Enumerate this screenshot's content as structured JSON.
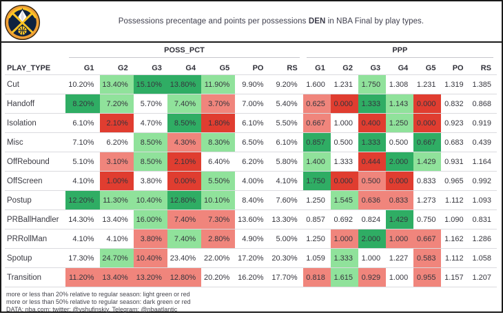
{
  "header": {
    "title_prefix": "Possessions precentage and points per possessions ",
    "title_team": "DEN",
    "title_suffix": " in NBA Final by play types."
  },
  "chart_data": {
    "type": "table",
    "title": "Possessions precentage and points per possessions DEN in NBA Final by play types.",
    "row_header": "PLAY_TYPE",
    "column_groups": [
      "POSS_PCT",
      "PPP"
    ],
    "columns": [
      "G1",
      "G2",
      "G3",
      "G4",
      "G5",
      "PO",
      "RS"
    ],
    "color_key": {
      "lg": "light_green (>+20% vs RS)",
      "dg": "dark_green (>+50% vs RS)",
      "lr": "light_red (<-20% vs RS)",
      "dr": "dark_red (<-50% vs RS)"
    },
    "rows": [
      {
        "play_type": "Cut",
        "poss": [
          "10.20%",
          "13.40%",
          "15.10%",
          "13.80%",
          "11.90%",
          "9.90%",
          "9.20%"
        ],
        "poss_c": [
          "",
          "lg",
          "dg",
          "dg",
          "lg",
          "",
          ""
        ],
        "ppp": [
          "1.600",
          "1.231",
          "1.750",
          "1.308",
          "1.231",
          "1.319",
          "1.385"
        ],
        "ppp_c": [
          "",
          "",
          "lg",
          "",
          "",
          "",
          ""
        ]
      },
      {
        "play_type": "Handoff",
        "poss": [
          "8.20%",
          "7.20%",
          "5.70%",
          "7.40%",
          "3.70%",
          "7.00%",
          "5.40%"
        ],
        "poss_c": [
          "dg",
          "lg",
          "",
          "lg",
          "lr",
          "",
          ""
        ],
        "ppp": [
          "0.625",
          "0.000",
          "1.333",
          "1.143",
          "0.000",
          "0.832",
          "0.868"
        ],
        "ppp_c": [
          "lr",
          "dr",
          "dg",
          "lg",
          "dr",
          "",
          ""
        ]
      },
      {
        "play_type": "Isolation",
        "poss": [
          "6.10%",
          "2.10%",
          "4.70%",
          "8.50%",
          "1.80%",
          "6.10%",
          "5.50%"
        ],
        "poss_c": [
          "",
          "dr",
          "",
          "dg",
          "dr",
          "",
          ""
        ],
        "ppp": [
          "0.667",
          "1.000",
          "0.400",
          "1.250",
          "0.000",
          "0.923",
          "0.919"
        ],
        "ppp_c": [
          "lr",
          "",
          "dr",
          "lg",
          "dr",
          "",
          ""
        ]
      },
      {
        "play_type": "Misc",
        "poss": [
          "7.10%",
          "6.20%",
          "8.50%",
          "4.30%",
          "8.30%",
          "6.50%",
          "6.10%"
        ],
        "poss_c": [
          "",
          "",
          "lg",
          "lr",
          "lg",
          "",
          ""
        ],
        "ppp": [
          "0.857",
          "0.500",
          "1.333",
          "0.500",
          "0.667",
          "0.683",
          "0.439"
        ],
        "ppp_c": [
          "dg",
          "",
          "dg",
          "",
          "dg",
          "",
          ""
        ]
      },
      {
        "play_type": "OffRebound",
        "poss": [
          "5.10%",
          "3.10%",
          "8.50%",
          "2.10%",
          "6.40%",
          "6.20%",
          "5.80%"
        ],
        "poss_c": [
          "",
          "lr",
          "lg",
          "dr",
          "",
          "",
          ""
        ],
        "ppp": [
          "1.400",
          "1.333",
          "0.444",
          "2.000",
          "1.429",
          "0.931",
          "1.164"
        ],
        "ppp_c": [
          "lg",
          "",
          "dr",
          "dg",
          "lg",
          "",
          ""
        ]
      },
      {
        "play_type": "OffScreen",
        "poss": [
          "4.10%",
          "1.00%",
          "3.80%",
          "0.00%",
          "5.50%",
          "4.00%",
          "4.10%"
        ],
        "poss_c": [
          "",
          "dr",
          "",
          "dr",
          "lg",
          "",
          ""
        ],
        "ppp": [
          "1.750",
          "0.000",
          "0.500",
          "0.000",
          "0.833",
          "0.965",
          "0.992"
        ],
        "ppp_c": [
          "dg",
          "dr",
          "lr",
          "dr",
          "",
          "",
          ""
        ]
      },
      {
        "play_type": "Postup",
        "poss": [
          "12.20%",
          "11.30%",
          "10.40%",
          "12.80%",
          "10.10%",
          "8.40%",
          "7.60%"
        ],
        "poss_c": [
          "dg",
          "lg",
          "lg",
          "dg",
          "lg",
          "",
          ""
        ],
        "ppp": [
          "1.250",
          "1.545",
          "0.636",
          "0.833",
          "1.273",
          "1.112",
          "1.093"
        ],
        "ppp_c": [
          "",
          "lg",
          "lr",
          "lr",
          "",
          "",
          ""
        ]
      },
      {
        "play_type": "PRBallHandler",
        "poss": [
          "14.30%",
          "13.40%",
          "16.00%",
          "7.40%",
          "7.30%",
          "13.60%",
          "13.30%"
        ],
        "poss_c": [
          "",
          "",
          "lg",
          "lr",
          "lr",
          "",
          ""
        ],
        "ppp": [
          "0.857",
          "0.692",
          "0.824",
          "1.429",
          "0.750",
          "1.090",
          "0.831"
        ],
        "ppp_c": [
          "",
          "",
          "",
          "dg",
          "",
          "",
          ""
        ]
      },
      {
        "play_type": "PRRollMan",
        "poss": [
          "4.10%",
          "4.10%",
          "3.80%",
          "7.40%",
          "2.80%",
          "4.90%",
          "5.00%"
        ],
        "poss_c": [
          "",
          "",
          "lr",
          "lg",
          "lr",
          "",
          ""
        ],
        "ppp": [
          "1.250",
          "1.000",
          "2.000",
          "1.000",
          "0.667",
          "1.162",
          "1.286"
        ],
        "ppp_c": [
          "",
          "lr",
          "dg",
          "lr",
          "lr",
          "",
          ""
        ]
      },
      {
        "play_type": "Spotup",
        "poss": [
          "17.30%",
          "24.70%",
          "10.40%",
          "23.40%",
          "22.00%",
          "17.20%",
          "20.30%"
        ],
        "poss_c": [
          "",
          "lg",
          "lr",
          "",
          "",
          "",
          ""
        ],
        "ppp": [
          "1.059",
          "1.333",
          "1.000",
          "1.227",
          "0.583",
          "1.112",
          "1.058"
        ],
        "ppp_c": [
          "",
          "lg",
          "",
          "",
          "lr",
          "",
          ""
        ]
      },
      {
        "play_type": "Transition",
        "poss": [
          "11.20%",
          "13.40%",
          "13.20%",
          "12.80%",
          "20.20%",
          "16.20%",
          "17.70%"
        ],
        "poss_c": [
          "lr",
          "lr",
          "lr",
          "lr",
          "",
          "",
          ""
        ],
        "ppp": [
          "0.818",
          "1.615",
          "0.929",
          "1.000",
          "0.955",
          "1.157",
          "1.207"
        ],
        "ppp_c": [
          "lr",
          "lg",
          "lr",
          "",
          "lr",
          "",
          ""
        ]
      }
    ]
  },
  "colors": {
    "light_green": "#90e29b",
    "dark_green": "#2fad64",
    "light_red": "#f0857c",
    "dark_red": "#e03d30",
    "frame": "#191919"
  },
  "footer": {
    "lines": [
      "more or less than 20% relative to regular season: light green or red",
      "more or less than 50% relative to regular season: dark green or red",
      "DATA: nba.com; twitter: @vshufinskiy, Telegram: @nbaatlantic"
    ]
  }
}
